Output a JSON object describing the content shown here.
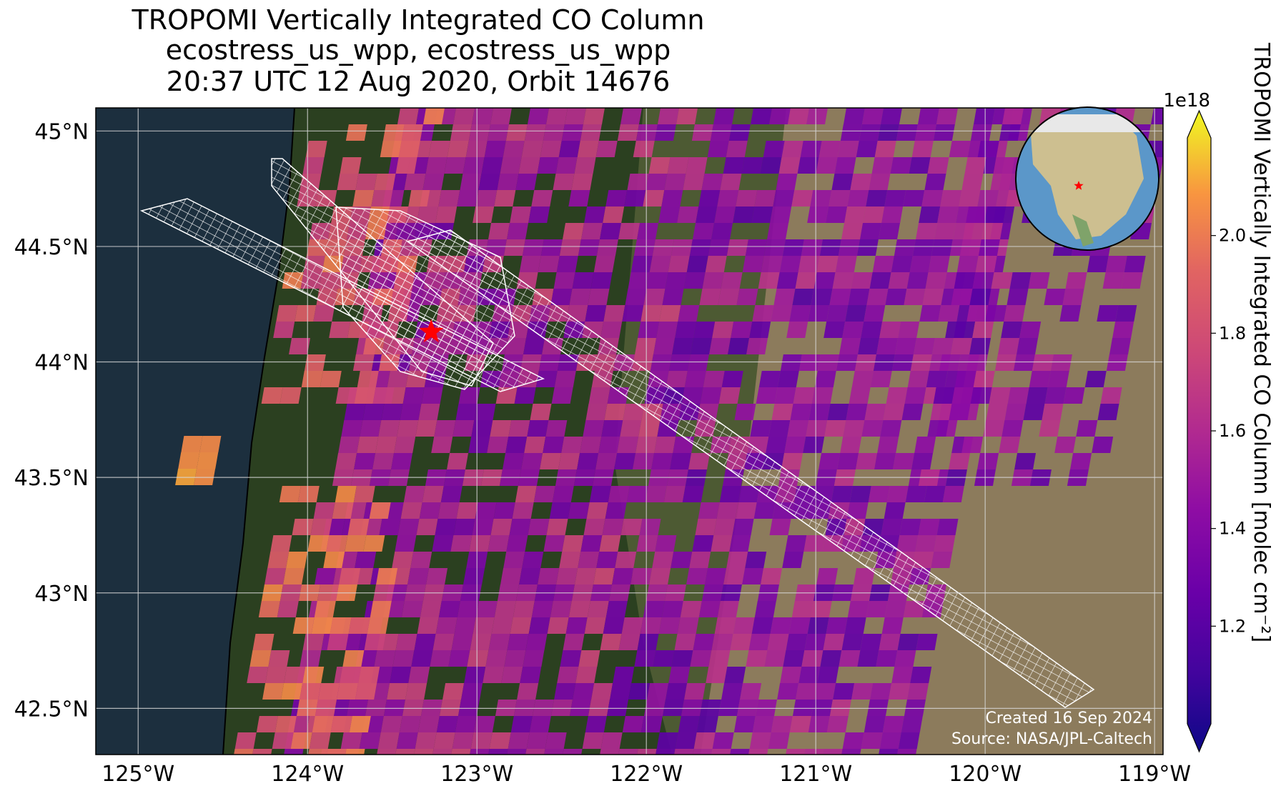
{
  "title": {
    "line1": "TROPOMI Vertically Integrated CO Column",
    "line2": "ecostress_us_wpp, ecostress_us_wpp",
    "line3": "20:37 UTC 12 Aug 2020, Orbit 14676"
  },
  "map": {
    "lon_range": [
      -125.25,
      -118.95
    ],
    "lat_range": [
      42.3,
      45.1
    ],
    "lat_ticks": [
      {
        "value": 45.0,
        "label": "45°N"
      },
      {
        "value": 44.5,
        "label": "44.5°N"
      },
      {
        "value": 44.0,
        "label": "44°N"
      },
      {
        "value": 43.5,
        "label": "43.5°N"
      },
      {
        "value": 43.0,
        "label": "43°N"
      },
      {
        "value": 42.5,
        "label": "42.5°N"
      }
    ],
    "lon_ticks": [
      {
        "value": -125,
        "label": "125°W"
      },
      {
        "value": -124,
        "label": "124°W"
      },
      {
        "value": -123,
        "label": "123°W"
      },
      {
        "value": -122,
        "label": "122°W"
      },
      {
        "value": -121,
        "label": "121°W"
      },
      {
        "value": -120,
        "label": "120°W"
      },
      {
        "value": -119,
        "label": "119°W"
      }
    ],
    "site_marker": {
      "name": "red-star",
      "lon": -123.27,
      "lat": 44.13,
      "color": "#ff0000"
    },
    "credit_line1": "Created 16 Sep 2024",
    "credit_line2": "Source: NASA/JPL-Caltech",
    "colors": {
      "ocean": "#1c2f3e",
      "forest": "#2b4020",
      "dry_land": "#8c7b5c",
      "grid": "#d8d8d8"
    }
  },
  "inset_globe": {
    "marker": "red-star",
    "ocean": "#5b97c9",
    "land": "#cdbf90"
  },
  "colorbar": {
    "label": "TROPOMI Vertically Integrated CO Column [molec cm⁻²]",
    "exponent": "1e18",
    "range": [
      1.0,
      2.2
    ],
    "colormap": "plasma",
    "ticks": [
      {
        "value": 1.2,
        "label": "1.2"
      },
      {
        "value": 1.4,
        "label": "1.4"
      },
      {
        "value": 1.6,
        "label": "1.6"
      },
      {
        "value": 1.8,
        "label": "1.8"
      },
      {
        "value": 2.0,
        "label": "2.0"
      }
    ]
  }
}
